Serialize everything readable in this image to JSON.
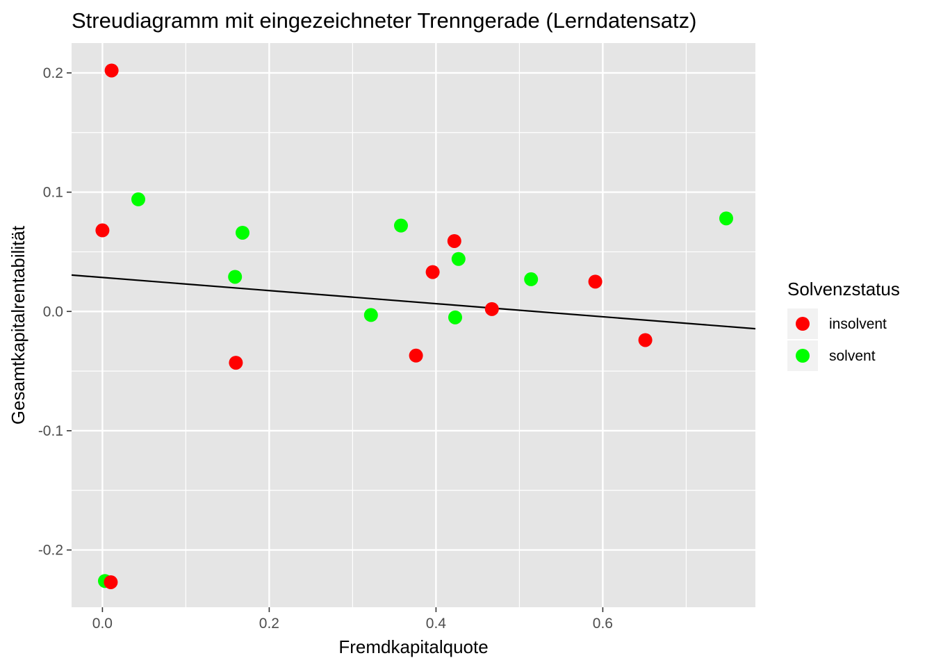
{
  "chart_data": {
    "type": "scatter",
    "title": "Streudiagramm mit eingezeichneter Trenngerade (Lerndatensatz)",
    "xlabel": "Fremdkapitalquote",
    "ylabel": "Gesamtkapitalrentabilität",
    "xlim": [
      -0.037,
      0.783
    ],
    "ylim": [
      -0.248,
      0.225
    ],
    "x_ticks": [
      0.0,
      0.2,
      0.4,
      0.6
    ],
    "x_tick_labels": [
      "0.0",
      "0.2",
      "0.4",
      "0.6"
    ],
    "y_ticks": [
      -0.2,
      -0.1,
      0.0,
      0.1,
      0.2
    ],
    "y_tick_labels": [
      "-0.2",
      "-0.1",
      "0.0",
      "0.1",
      "0.2"
    ],
    "grid": true,
    "legend": {
      "title": "Solvenzstatus",
      "position": "right"
    },
    "series": [
      {
        "name": "insolvent",
        "color": "#ff0000",
        "points": [
          {
            "x": 0.011,
            "y": 0.202
          },
          {
            "x": 0.0,
            "y": 0.068
          },
          {
            "x": 0.422,
            "y": 0.059
          },
          {
            "x": 0.396,
            "y": 0.033
          },
          {
            "x": 0.591,
            "y": 0.025
          },
          {
            "x": 0.467,
            "y": 0.002
          },
          {
            "x": 0.651,
            "y": -0.024
          },
          {
            "x": 0.376,
            "y": -0.037
          },
          {
            "x": 0.16,
            "y": -0.043
          },
          {
            "x": 0.01,
            "y": -0.227
          }
        ]
      },
      {
        "name": "solvent",
        "color": "#00ff00",
        "points": [
          {
            "x": 0.043,
            "y": 0.094
          },
          {
            "x": 0.748,
            "y": 0.078
          },
          {
            "x": 0.358,
            "y": 0.072
          },
          {
            "x": 0.168,
            "y": 0.066
          },
          {
            "x": 0.427,
            "y": 0.044
          },
          {
            "x": 0.159,
            "y": 0.029
          },
          {
            "x": 0.514,
            "y": 0.027
          },
          {
            "x": 0.322,
            "y": -0.003
          },
          {
            "x": 0.423,
            "y": -0.005
          },
          {
            "x": 0.003,
            "y": -0.226
          }
        ]
      }
    ],
    "separating_line": {
      "color": "#000000",
      "points": [
        {
          "x": -0.037,
          "y": 0.0305
        },
        {
          "x": 0.783,
          "y": -0.0145
        }
      ]
    }
  }
}
